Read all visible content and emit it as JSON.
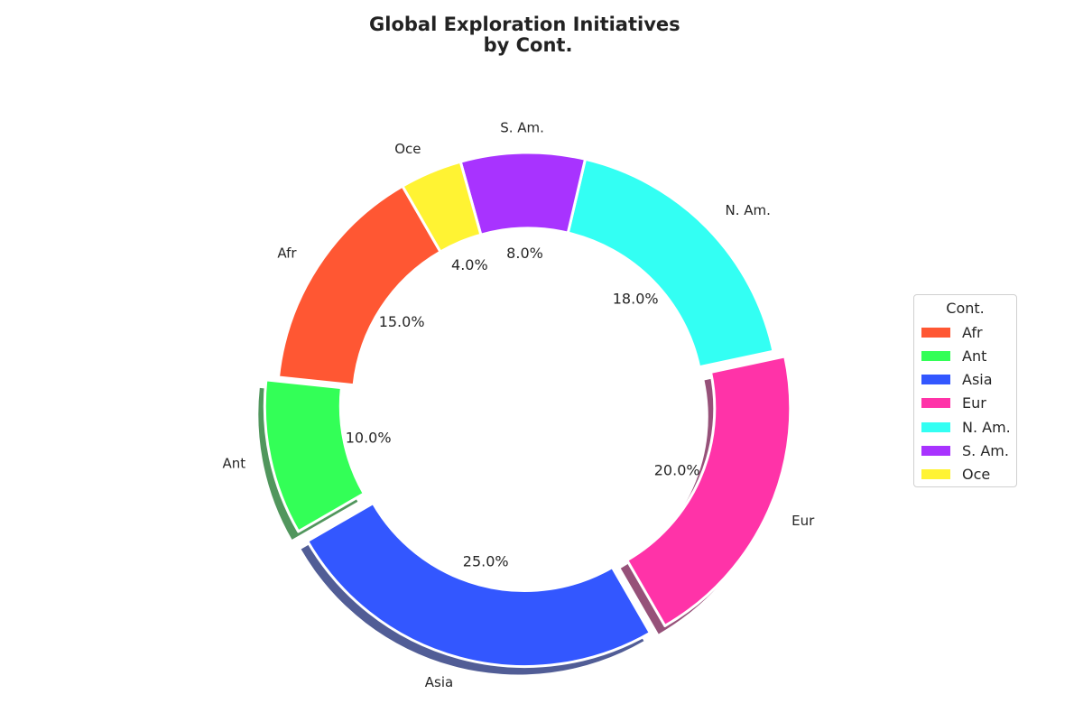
{
  "chart_data": {
    "type": "pie",
    "title": "Global Exploration Initiatives\nby Cont.",
    "categories": [
      "Afr",
      "Ant",
      "Asia",
      "Eur",
      "N. Am.",
      "S. Am.",
      "Oce"
    ],
    "values": [
      15.0,
      10.0,
      25.0,
      20.0,
      18.0,
      8.0,
      4.0
    ],
    "value_labels": [
      "15.0%",
      "10.0%",
      "25.0%",
      "20.0%",
      "18.0%",
      "8.0%",
      "4.0%"
    ],
    "colors": [
      "#FF5733",
      "#33FF57",
      "#3357FF",
      "#FF33A8",
      "#33FFF3",
      "#A833FF",
      "#FFF333"
    ],
    "exploded": [
      false,
      true,
      true,
      true,
      false,
      false,
      false
    ],
    "donut": true,
    "shadow": true,
    "legend": {
      "title": "Cont.",
      "placement": "right",
      "entries": [
        "Afr",
        "Ant",
        "Asia",
        "Eur",
        "N. Am.",
        "S. Am.",
        "Oce"
      ]
    }
  }
}
